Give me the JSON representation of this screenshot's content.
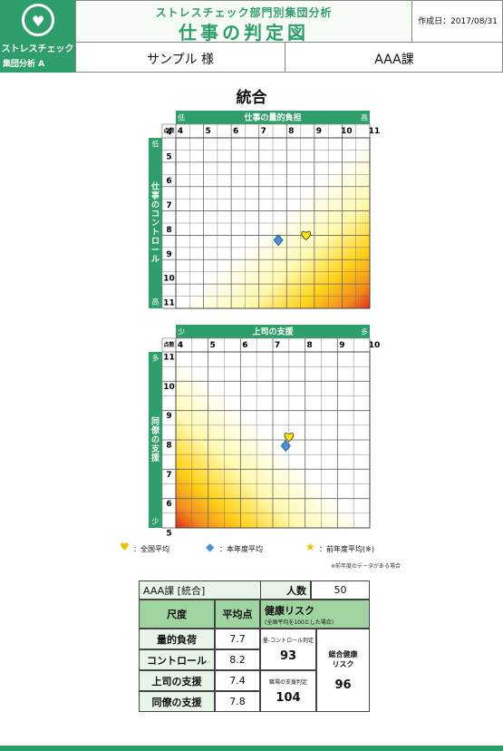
{
  "header": {
    "logo_text": "ストレスチェック",
    "logo_sub": "集団分析 A",
    "subtitle": "ストレスチェック部門別集団分析",
    "title": "仕事の判定図",
    "date": "作成日：2017/08/31",
    "name": "サンプル 様",
    "dept": "AAA課"
  },
  "section_title": "統合",
  "colors": {
    "brand": "#2e9e6a",
    "axis_green": "#2e9e6a",
    "national": "#ffe600",
    "current": "#4a90d9",
    "previous": "#ffe600"
  },
  "chart_data": [
    {
      "type": "scatter",
      "title": "",
      "x_axis_label": "仕事の量的負担",
      "x_low": "低",
      "x_high": "高",
      "y_axis_label": "仕事のコントロール",
      "y_low": "高",
      "y_high": "低",
      "corner_label": "点数",
      "x_ticks": [
        4,
        5,
        6,
        7,
        8,
        9,
        10,
        11
      ],
      "y_ticks": [
        11,
        10,
        9,
        8,
        7,
        6,
        5,
        4
      ],
      "xlim": [
        4,
        11
      ],
      "ylim": [
        4,
        11
      ],
      "y_inverted": true,
      "series": [
        {
          "name": "全国平均",
          "marker": "heart",
          "x": 8.7,
          "y": 8.0
        },
        {
          "name": "本年度平均",
          "marker": "diamond",
          "x": 7.7,
          "y": 8.2
        }
      ]
    },
    {
      "type": "scatter",
      "title": "",
      "x_axis_label": "上司の支援",
      "x_low": "少",
      "x_high": "多",
      "y_axis_label": "同僚の支援",
      "y_low": "少",
      "y_high": "多",
      "corner_label": "点数",
      "x_ticks": [
        4,
        5,
        6,
        7,
        8,
        9,
        10
      ],
      "y_ticks": [
        11,
        10,
        9,
        8,
        7,
        6,
        5
      ],
      "xlim": [
        4,
        10
      ],
      "ylim": [
        5,
        11
      ],
      "y_inverted": false,
      "series": [
        {
          "name": "全国平均",
          "marker": "heart",
          "x": 7.5,
          "y": 8.1
        },
        {
          "name": "本年度平均",
          "marker": "diamond",
          "x": 7.4,
          "y": 7.8
        }
      ]
    }
  ],
  "legend": {
    "national": "：全国平均",
    "current": "：本年度平均",
    "previous": "：前年度平均(※)",
    "note": "※前年度のデータがある場合"
  },
  "table": {
    "group": "AAA課 [統合]",
    "count_label": "人数",
    "count": "50",
    "col_scale": "尺度",
    "col_avg": "平均点",
    "col_risk": "健康リスク",
    "col_risk_note": "(全国平均を100とした場合)",
    "rows": [
      {
        "label": "量的負荷",
        "value": "7.7"
      },
      {
        "label": "コントロール",
        "value": "8.2"
      },
      {
        "label": "上司の支援",
        "value": "7.4"
      },
      {
        "label": "同僚の支援",
        "value": "7.8"
      }
    ],
    "risk1_label": "量-コントロール判定",
    "risk1_value": "93",
    "risk2_label": "職場の支援判定",
    "risk2_value": "104",
    "total_label": "総合健康\nリスク",
    "total_value": "96"
  }
}
